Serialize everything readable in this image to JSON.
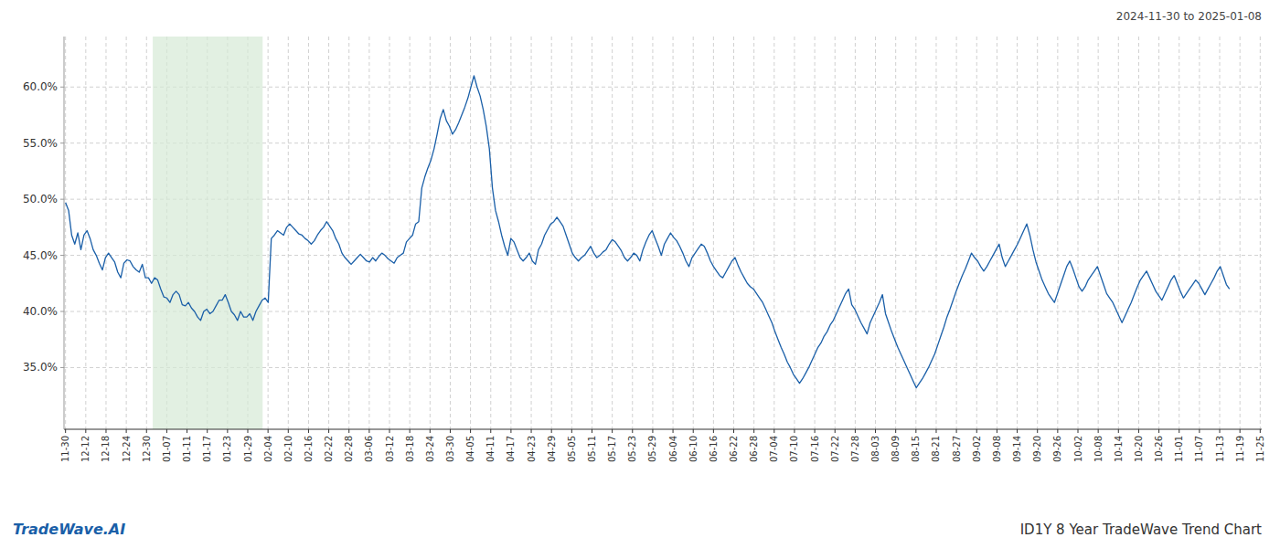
{
  "chart_data": {
    "type": "line",
    "title": "ID1Y 8 Year TradeWave Trend Chart",
    "subtitle": "2024-11-30 to 2025-01-08",
    "annotations": [
      "TradeWave.AI"
    ],
    "color": "#1a5fa8",
    "grid": true,
    "highlight": {
      "start": 28.397,
      "end": 64.185,
      "color": "#d6ead6"
    },
    "xlim": [
      -0.5,
      389.5
    ],
    "xticks": [
      {
        "value": 0,
        "label": "11-30"
      },
      {
        "value": 6.593,
        "label": "12-12"
      },
      {
        "value": 13.186,
        "label": "12-18"
      },
      {
        "value": 19.78,
        "label": "12-24"
      },
      {
        "value": 26.373,
        "label": "12-30"
      },
      {
        "value": 32.966,
        "label": "01-07"
      },
      {
        "value": 39.559,
        "label": "01-11"
      },
      {
        "value": 46.153,
        "label": "01-17"
      },
      {
        "value": 52.746,
        "label": "01-23"
      },
      {
        "value": 59.339,
        "label": "01-29"
      },
      {
        "value": 65.932,
        "label": "02-04"
      },
      {
        "value": 72.525,
        "label": "02-10"
      },
      {
        "value": 79.119,
        "label": "02-16"
      },
      {
        "value": 85.712,
        "label": "02-22"
      },
      {
        "value": 92.305,
        "label": "02-28"
      },
      {
        "value": 98.898,
        "label": "03-06"
      },
      {
        "value": 105.492,
        "label": "03-12"
      },
      {
        "value": 112.085,
        "label": "03-18"
      },
      {
        "value": 118.678,
        "label": "03-24"
      },
      {
        "value": 125.271,
        "label": "03-30"
      },
      {
        "value": 131.864,
        "label": "04-05"
      },
      {
        "value": 138.458,
        "label": "04-11"
      },
      {
        "value": 145.051,
        "label": "04-17"
      },
      {
        "value": 151.644,
        "label": "04-23"
      },
      {
        "value": 158.237,
        "label": "04-29"
      },
      {
        "value": 164.831,
        "label": "05-05"
      },
      {
        "value": 171.424,
        "label": "05-11"
      },
      {
        "value": 178.017,
        "label": "05-17"
      },
      {
        "value": 184.61,
        "label": "05-23"
      },
      {
        "value": 191.203,
        "label": "05-29"
      },
      {
        "value": 197.797,
        "label": "06-04"
      },
      {
        "value": 204.39,
        "label": "06-10"
      },
      {
        "value": 210.983,
        "label": "06-16"
      },
      {
        "value": 217.576,
        "label": "06-22"
      },
      {
        "value": 224.169,
        "label": "06-28"
      },
      {
        "value": 230.763,
        "label": "07-04"
      },
      {
        "value": 237.356,
        "label": "07-10"
      },
      {
        "value": 243.949,
        "label": "07-16"
      },
      {
        "value": 250.542,
        "label": "07-22"
      },
      {
        "value": 257.136,
        "label": "07-28"
      },
      {
        "value": 263.729,
        "label": "08-03"
      },
      {
        "value": 270.322,
        "label": "08-09"
      },
      {
        "value": 276.915,
        "label": "08-15"
      },
      {
        "value": 283.508,
        "label": "08-21"
      },
      {
        "value": 290.102,
        "label": "08-27"
      },
      {
        "value": 296.695,
        "label": "09-02"
      },
      {
        "value": 303.288,
        "label": "09-08"
      },
      {
        "value": 309.881,
        "label": "09-14"
      },
      {
        "value": 316.475,
        "label": "09-20"
      },
      {
        "value": 323.068,
        "label": "09-26"
      },
      {
        "value": 329.661,
        "label": "10-02"
      },
      {
        "value": 336.254,
        "label": "10-08"
      },
      {
        "value": 342.847,
        "label": "10-14"
      },
      {
        "value": 349.441,
        "label": "10-20"
      },
      {
        "value": 356.034,
        "label": "10-26"
      },
      {
        "value": 362.627,
        "label": "11-01"
      },
      {
        "value": 369.22,
        "label": "11-07"
      },
      {
        "value": 375.814,
        "label": "11-13"
      },
      {
        "value": 382.407,
        "label": "11-19"
      },
      {
        "value": 389,
        "label": "11-25"
      }
    ],
    "ylim": [
      0.295,
      0.645
    ],
    "yticks": [
      {
        "value": 0.35,
        "label": "35.0%"
      },
      {
        "value": 0.4,
        "label": "40.0%"
      },
      {
        "value": 0.45,
        "label": "45.0%"
      },
      {
        "value": 0.5,
        "label": "50.0%"
      },
      {
        "value": 0.55,
        "label": "55.0%"
      },
      {
        "value": 0.6,
        "label": "60.0%"
      }
    ],
    "values": [
      0.497,
      0.49,
      0.468,
      0.46,
      0.47,
      0.455,
      0.468,
      0.472,
      0.465,
      0.455,
      0.45,
      0.443,
      0.437,
      0.448,
      0.452,
      0.448,
      0.444,
      0.435,
      0.43,
      0.443,
      0.446,
      0.445,
      0.44,
      0.437,
      0.435,
      0.442,
      0.43,
      0.43,
      0.425,
      0.43,
      0.428,
      0.42,
      0.413,
      0.412,
      0.408,
      0.415,
      0.418,
      0.415,
      0.406,
      0.405,
      0.408,
      0.403,
      0.4,
      0.395,
      0.392,
      0.4,
      0.402,
      0.398,
      0.4,
      0.405,
      0.41,
      0.41,
      0.415,
      0.408,
      0.4,
      0.397,
      0.392,
      0.4,
      0.395,
      0.395,
      0.398,
      0.392,
      0.4,
      0.405,
      0.41,
      0.412,
      0.408,
      0.465,
      0.468,
      0.472,
      0.47,
      0.468,
      0.475,
      0.478,
      0.475,
      0.472,
      0.469,
      0.468,
      0.465,
      0.463,
      0.46,
      0.463,
      0.468,
      0.472,
      0.475,
      0.48,
      0.476,
      0.472,
      0.465,
      0.46,
      0.452,
      0.448,
      0.445,
      0.442,
      0.445,
      0.448,
      0.451,
      0.448,
      0.445,
      0.444,
      0.448,
      0.445,
      0.449,
      0.452,
      0.45,
      0.447,
      0.445,
      0.443,
      0.448,
      0.45,
      0.452,
      0.462,
      0.465,
      0.468,
      0.478,
      0.48,
      0.51,
      0.52,
      0.528,
      0.535,
      0.545,
      0.558,
      0.572,
      0.58,
      0.57,
      0.565,
      0.558,
      0.562,
      0.568,
      0.575,
      0.582,
      0.59,
      0.6,
      0.61,
      0.6,
      0.592,
      0.58,
      0.565,
      0.545,
      0.51,
      0.49,
      0.48,
      0.468,
      0.458,
      0.45,
      0.465,
      0.462,
      0.455,
      0.448,
      0.445,
      0.448,
      0.452,
      0.445,
      0.442,
      0.455,
      0.46,
      0.468,
      0.473,
      0.478,
      0.48,
      0.484,
      0.48,
      0.476,
      0.468,
      0.46,
      0.452,
      0.448,
      0.445,
      0.448,
      0.45,
      0.454,
      0.458,
      0.452,
      0.448,
      0.45,
      0.453,
      0.455,
      0.46,
      0.464,
      0.462,
      0.458,
      0.454,
      0.448,
      0.445,
      0.448,
      0.452,
      0.45,
      0.445,
      0.455,
      0.462,
      0.468,
      0.472,
      0.465,
      0.458,
      0.45,
      0.46,
      0.465,
      0.47,
      0.466,
      0.463,
      0.458,
      0.452,
      0.445,
      0.44,
      0.448,
      0.452,
      0.456,
      0.46,
      0.458,
      0.452,
      0.445,
      0.44,
      0.436,
      0.432,
      0.43,
      0.435,
      0.44,
      0.445,
      0.448,
      0.441,
      0.435,
      0.43,
      0.425,
      0.422,
      0.42,
      0.416,
      0.412,
      0.408,
      0.402,
      0.396,
      0.39,
      0.382,
      0.375,
      0.368,
      0.362,
      0.355,
      0.35,
      0.344,
      0.34,
      0.336,
      0.34,
      0.345,
      0.35,
      0.356,
      0.362,
      0.368,
      0.372,
      0.378,
      0.382,
      0.388,
      0.392,
      0.398,
      0.404,
      0.41,
      0.416,
      0.42,
      0.406,
      0.402,
      0.396,
      0.39,
      0.385,
      0.38,
      0.39,
      0.396,
      0.402,
      0.408,
      0.415,
      0.398,
      0.39,
      0.382,
      0.375,
      0.368,
      0.362,
      0.356,
      0.35,
      0.344,
      0.338,
      0.332,
      0.336,
      0.34,
      0.345,
      0.35,
      0.356,
      0.362,
      0.37,
      0.378,
      0.386,
      0.395,
      0.402,
      0.41,
      0.418,
      0.425,
      0.432,
      0.438,
      0.445,
      0.452,
      0.448,
      0.445,
      0.44,
      0.436,
      0.44,
      0.445,
      0.45,
      0.455,
      0.46,
      0.448,
      0.44,
      0.445,
      0.45,
      0.455,
      0.46,
      0.466,
      0.472,
      0.478,
      0.468,
      0.455,
      0.444,
      0.436,
      0.428,
      0.422,
      0.416,
      0.412,
      0.408,
      0.416,
      0.424,
      0.432,
      0.44,
      0.445,
      0.438,
      0.43,
      0.422,
      0.418,
      0.422,
      0.428,
      0.432,
      0.436,
      0.44,
      0.432,
      0.424,
      0.416,
      0.412,
      0.408,
      0.402,
      0.396,
      0.39,
      0.396,
      0.402,
      0.408,
      0.415,
      0.422,
      0.428,
      0.432,
      0.436,
      0.43,
      0.424,
      0.418,
      0.414,
      0.41,
      0.416,
      0.422,
      0.428,
      0.432,
      0.425,
      0.418,
      0.412,
      0.416,
      0.42,
      0.424,
      0.428,
      0.425,
      0.42,
      0.415,
      0.42,
      0.425,
      0.43,
      0.436,
      0.44,
      0.432,
      0.424,
      0.42
    ]
  }
}
